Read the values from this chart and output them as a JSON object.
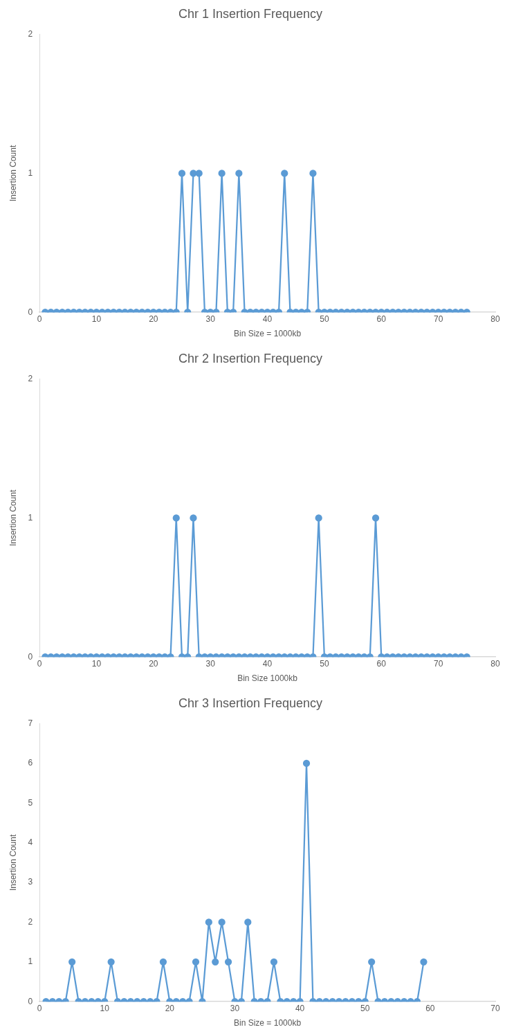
{
  "chart_data": [
    {
      "type": "line",
      "title": "Chr 1 Insertion Frequency",
      "xlabel": "Bin Size = 1000kb",
      "ylabel": "Insertion Count",
      "x": [
        1,
        2,
        3,
        4,
        5,
        6,
        7,
        8,
        9,
        10,
        11,
        12,
        13,
        14,
        15,
        16,
        17,
        18,
        19,
        20,
        21,
        22,
        23,
        24,
        25,
        26,
        27,
        28,
        29,
        30,
        31,
        32,
        33,
        34,
        35,
        36,
        37,
        38,
        39,
        40,
        41,
        42,
        43,
        44,
        45,
        46,
        47,
        48,
        49,
        50,
        51,
        52,
        53,
        54,
        55,
        56,
        57,
        58,
        59,
        60,
        61,
        62,
        63,
        64,
        65,
        66,
        67,
        68,
        69,
        70,
        71,
        72,
        73,
        74,
        75
      ],
      "series": [
        {
          "color": "#5b9bd5",
          "values": [
            0,
            0,
            0,
            0,
            0,
            0,
            0,
            0,
            0,
            0,
            0,
            0,
            0,
            0,
            0,
            0,
            0,
            0,
            0,
            0,
            0,
            0,
            0,
            0,
            1,
            0,
            1,
            1,
            0,
            0,
            0,
            1,
            0,
            0,
            1,
            0,
            0,
            0,
            0,
            0,
            0,
            0,
            1,
            0,
            0,
            0,
            0,
            1,
            0,
            0,
            0,
            0,
            0,
            0,
            0,
            0,
            0,
            0,
            0,
            0,
            0,
            0,
            0,
            0,
            0,
            0,
            0,
            0,
            0,
            0,
            0,
            0,
            0,
            0,
            0
          ]
        }
      ],
      "xlim": [
        0,
        80
      ],
      "xticks": [
        0,
        10,
        20,
        30,
        40,
        50,
        60,
        70,
        80
      ],
      "ylim": [
        0,
        2
      ],
      "yticks": [
        0,
        1,
        2
      ],
      "grid": false,
      "legend": false,
      "marker": "circle",
      "line_style": "solid"
    },
    {
      "type": "line",
      "title": "Chr 2 Insertion Frequency",
      "xlabel": "Bin Size 1000kb",
      "ylabel": "Insertion Count",
      "x": [
        1,
        2,
        3,
        4,
        5,
        6,
        7,
        8,
        9,
        10,
        11,
        12,
        13,
        14,
        15,
        16,
        17,
        18,
        19,
        20,
        21,
        22,
        23,
        24,
        25,
        26,
        27,
        28,
        29,
        30,
        31,
        32,
        33,
        34,
        35,
        36,
        37,
        38,
        39,
        40,
        41,
        42,
        43,
        44,
        45,
        46,
        47,
        48,
        49,
        50,
        51,
        52,
        53,
        54,
        55,
        56,
        57,
        58,
        59,
        60,
        61,
        62,
        63,
        64,
        65,
        66,
        67,
        68,
        69,
        70,
        71,
        72,
        73,
        74,
        75
      ],
      "series": [
        {
          "color": "#5b9bd5",
          "values": [
            0,
            0,
            0,
            0,
            0,
            0,
            0,
            0,
            0,
            0,
            0,
            0,
            0,
            0,
            0,
            0,
            0,
            0,
            0,
            0,
            0,
            0,
            0,
            1,
            0,
            0,
            1,
            0,
            0,
            0,
            0,
            0,
            0,
            0,
            0,
            0,
            0,
            0,
            0,
            0,
            0,
            0,
            0,
            0,
            0,
            0,
            0,
            0,
            1,
            0,
            0,
            0,
            0,
            0,
            0,
            0,
            0,
            0,
            1,
            0,
            0,
            0,
            0,
            0,
            0,
            0,
            0,
            0,
            0,
            0,
            0,
            0,
            0,
            0,
            0
          ]
        }
      ],
      "xlim": [
        0,
        80
      ],
      "xticks": [
        0,
        10,
        20,
        30,
        40,
        50,
        60,
        70,
        80
      ],
      "ylim": [
        0,
        2
      ],
      "yticks": [
        0,
        1,
        2
      ],
      "grid": false,
      "legend": false,
      "marker": "circle",
      "line_style": "solid"
    },
    {
      "type": "line",
      "title": "Chr 3 Insertion Frequency",
      "xlabel": "Bin Size = 1000kb",
      "ylabel": "Insertion Count",
      "x": [
        1,
        2,
        3,
        4,
        5,
        6,
        7,
        8,
        9,
        10,
        11,
        12,
        13,
        14,
        15,
        16,
        17,
        18,
        19,
        20,
        21,
        22,
        23,
        24,
        25,
        26,
        27,
        28,
        29,
        30,
        31,
        32,
        33,
        34,
        35,
        36,
        37,
        38,
        39,
        40,
        41,
        42,
        43,
        44,
        45,
        46,
        47,
        48,
        49,
        50,
        51,
        52,
        53,
        54,
        55,
        56,
        57,
        58,
        59
      ],
      "series": [
        {
          "color": "#5b9bd5",
          "values": [
            0,
            0,
            0,
            0,
            1,
            0,
            0,
            0,
            0,
            0,
            1,
            0,
            0,
            0,
            0,
            0,
            0,
            0,
            1,
            0,
            0,
            0,
            0,
            1,
            0,
            2,
            1,
            2,
            1,
            0,
            0,
            2,
            0,
            0,
            0,
            1,
            0,
            0,
            0,
            0,
            6,
            0,
            0,
            0,
            0,
            0,
            0,
            0,
            0,
            0,
            1,
            0,
            0,
            0,
            0,
            0,
            0,
            0,
            1
          ]
        }
      ],
      "xlim": [
        0,
        70
      ],
      "xticks": [
        0,
        10,
        20,
        30,
        40,
        50,
        60,
        70
      ],
      "ylim": [
        0,
        7
      ],
      "yticks": [
        0,
        1,
        2,
        3,
        4,
        5,
        6,
        7
      ],
      "grid": false,
      "legend": false,
      "marker": "circle",
      "line_style": "solid"
    }
  ]
}
